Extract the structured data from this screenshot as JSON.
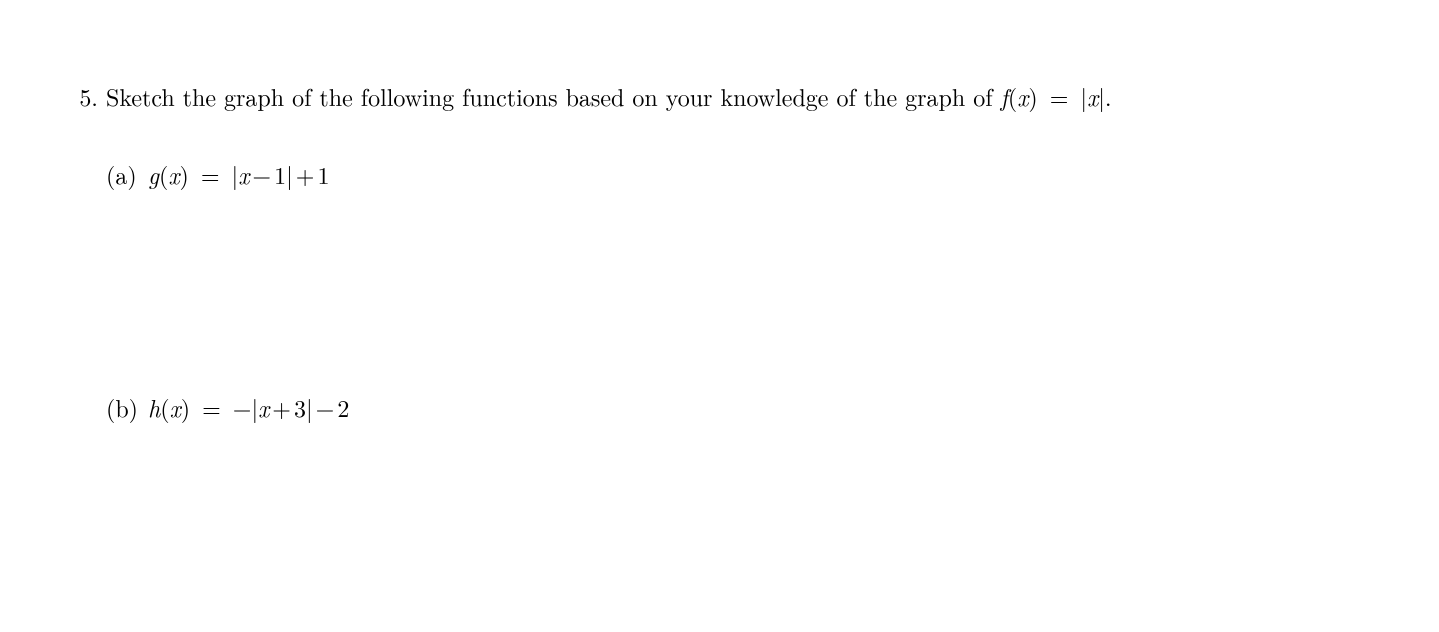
{
  "page": {
    "background_color": "#ffffff",
    "text_color": "#000000",
    "font_family_serif": "Latin Modern Roman / Computer Modern",
    "font_size_pt": 18
  },
  "problem": {
    "number": "5.",
    "prompt_pre": "Sketch the graph of the following functions based on your knowledge of the graph of ",
    "base_func_lhs": "f",
    "base_func_arg": "x",
    "base_func_rhs_open": "|",
    "base_func_rhs_var": "x",
    "base_func_rhs_close": "|",
    "prompt_post": "."
  },
  "parts": {
    "a": {
      "label": "(a)",
      "func_name": "g",
      "arg": "x",
      "rhs_text": "|x − 1| + 1",
      "rhs": {
        "open": "|",
        "var": "x",
        "op1": "−",
        "c1": "1",
        "close": "|",
        "op2": "+",
        "c2": "1"
      }
    },
    "b": {
      "label": "(b)",
      "func_name": "h",
      "arg": "x",
      "rhs_text": "−|x + 3| − 2",
      "rhs": {
        "neg": "−",
        "open": "|",
        "var": "x",
        "op1": "+",
        "c1": "3",
        "close": "|",
        "op2": "−",
        "c2": "2"
      }
    }
  }
}
